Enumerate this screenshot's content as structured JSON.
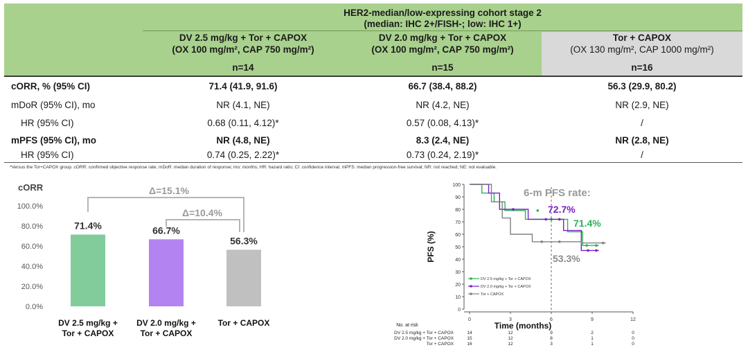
{
  "table": {
    "title_line1": "HER2-median/low-expressing cohort stage 2",
    "title_line2": "(median: IHC 2+/FISH-; low: IHC 1+)",
    "arms": [
      {
        "line1": "DV 2.5 mg/kg + Tor + CAPOX",
        "line2": "(OX 100 mg/m², CAP 750 mg/m²)",
        "n": "n=14"
      },
      {
        "line1": "DV 2.0 mg/kg + Tor + CAPOX",
        "line2": "(OX 100 mg/m², CAP 750 mg/m²)",
        "n": "n=15"
      },
      {
        "line1": "Tor + CAPOX",
        "line2": "(OX 130 mg/m², CAP 1000 mg/m²)",
        "n": "n=16"
      }
    ],
    "rows": [
      {
        "label": "cORR, % (95% CI)",
        "values": [
          "71.4 (41.9, 91.6)",
          "66.7 (38.4, 88.2)",
          "56.3 (29.9, 80.2)"
        ]
      },
      {
        "label": "mDoR (95% CI), mo",
        "values": [
          "NR (4.1, NE)",
          "NR (4.2, NE)",
          "NR (2.9, NE)"
        ]
      },
      {
        "label": "HR (95% CI)",
        "values": [
          "0.68 (0.11, 4.12)*",
          "0.57 (0.08, 4.13)*",
          "/"
        ]
      },
      {
        "label": "mPFS (95% CI), mo",
        "values": [
          "NR (4.8, NE)",
          "8.3 (2.4, NE)",
          "NR (2.8, NE)"
        ]
      },
      {
        "label": "HR (95% CI)",
        "values": [
          "0.74 (0.25, 2.22)*",
          "0.73 (0.24, 2.19)*",
          "/"
        ]
      }
    ],
    "footnote": "*Versus the Tor+CAPOX group. cORR: confirmed objective response rate; mDoR: median duration of response; mo: months; HR: hazard ratio; CI: confidence interval; mPFS: median progression-free survival; NR: not reached; NE: not evaluable."
  },
  "colors": {
    "green": "#82cc9c",
    "purple": "#b483f2",
    "grey": "#c0c0c0",
    "header_green": "#a9d18e",
    "dark_purple": "#7a1fc4",
    "dark_green": "#2bb25a",
    "dark_grey": "#8a8a8a"
  },
  "chart_data": [
    {
      "type": "bar",
      "title": "cORR",
      "categories": [
        [
          "DV 2.5 mg/kg +",
          "Tor + CAPOX"
        ],
        [
          "DV 2.0 mg/kg +",
          "Tor + CAPOX"
        ],
        [
          "Tor + CAPOX"
        ]
      ],
      "values": [
        71.4,
        66.7,
        56.3
      ],
      "value_labels": [
        "71.4%",
        "66.7%",
        "56.3%"
      ],
      "yticks": [
        "0.0%",
        "20.0%",
        "40.0%",
        "60.0%",
        "80.0%",
        "100.0%"
      ],
      "ylim": [
        0,
        100
      ],
      "deltas": [
        "Δ=15.1%",
        "Δ=10.4%"
      ]
    },
    {
      "type": "line",
      "title": "6-m PFS rate:",
      "xlabel": "Time (months)",
      "ylabel": "PFS (%)",
      "xlim": [
        0,
        12
      ],
      "ylim": [
        0,
        100
      ],
      "xticks": [
        "0",
        "3",
        "6",
        "9",
        "12"
      ],
      "yticks": [
        "0",
        "10",
        "20",
        "30",
        "40",
        "50",
        "60",
        "70",
        "80",
        "90",
        "100"
      ],
      "rate_labels": [
        "72.7%",
        "71.4%",
        "53.3%"
      ],
      "series": [
        {
          "name": "DV 2.5 mg/kg + Tor + CAPOX",
          "color": "#2bb25a",
          "points": [
            [
              0,
              100
            ],
            [
              0.9,
              100
            ],
            [
              0.9,
              93
            ],
            [
              1.8,
              93
            ],
            [
              1.8,
              86
            ],
            [
              2.6,
              86
            ],
            [
              2.6,
              79
            ],
            [
              4.1,
              79
            ],
            [
              4.1,
              72
            ],
            [
              6.0,
              72
            ],
            [
              7.2,
              72
            ],
            [
              7.2,
              62
            ],
            [
              8.3,
              62
            ],
            [
              8.3,
              51
            ],
            [
              9.5,
              51
            ]
          ],
          "censor": [
            [
              5.0,
              79
            ],
            [
              6.0,
              72
            ],
            [
              8.6,
              51
            ],
            [
              9.3,
              51
            ]
          ]
        },
        {
          "name": "DV 2.0 mg/kg + Tor + CAPOX",
          "color": "#7a1fc4",
          "points": [
            [
              0,
              100
            ],
            [
              1.4,
              100
            ],
            [
              1.4,
              93
            ],
            [
              2.2,
              93
            ],
            [
              2.2,
              80
            ],
            [
              4.3,
              80
            ],
            [
              4.3,
              72
            ],
            [
              6.9,
              72
            ],
            [
              6.9,
              63
            ],
            [
              8.2,
              63
            ],
            [
              8.2,
              47
            ],
            [
              9.5,
              47
            ]
          ],
          "censor": [
            [
              3.2,
              80
            ],
            [
              5.6,
              72
            ],
            [
              6.6,
              72
            ],
            [
              8.7,
              47
            ],
            [
              9.3,
              47
            ]
          ]
        },
        {
          "name": "Tor + CAPOX",
          "color": "#808080",
          "points": [
            [
              0,
              100
            ],
            [
              1.6,
              100
            ],
            [
              1.6,
              86
            ],
            [
              2.4,
              86
            ],
            [
              2.4,
              73
            ],
            [
              3.0,
              73
            ],
            [
              3.0,
              60
            ],
            [
              4.6,
              60
            ],
            [
              4.6,
              54
            ],
            [
              8.2,
              54
            ],
            [
              8.2,
              53
            ],
            [
              10.0,
              53
            ]
          ],
          "censor": [
            [
              5.3,
              54
            ],
            [
              6.6,
              54
            ],
            [
              9.8,
              53
            ]
          ]
        }
      ],
      "legend": [
        "DV 2.5 mg/kg + Tor + CAPOX",
        "DV 2.0 mg/kg + Tor + CAPOX",
        "Tor + CAPOX"
      ],
      "at_risk": {
        "title": "No. at risk",
        "rows": [
          {
            "label": "DV 2.5 mg/kg + Tor + CAPOX",
            "values": [
              "14",
              "12",
              "9",
              "2",
              "0"
            ]
          },
          {
            "label": "DV 2.0 mg/kg + Tor + CAPOX",
            "values": [
              "15",
              "12",
              "8",
              "1",
              "0"
            ]
          },
          {
            "label": "Tor + CAPOX",
            "values": [
              "16",
              "12",
              "3",
              "1",
              "0"
            ]
          }
        ]
      }
    }
  ]
}
